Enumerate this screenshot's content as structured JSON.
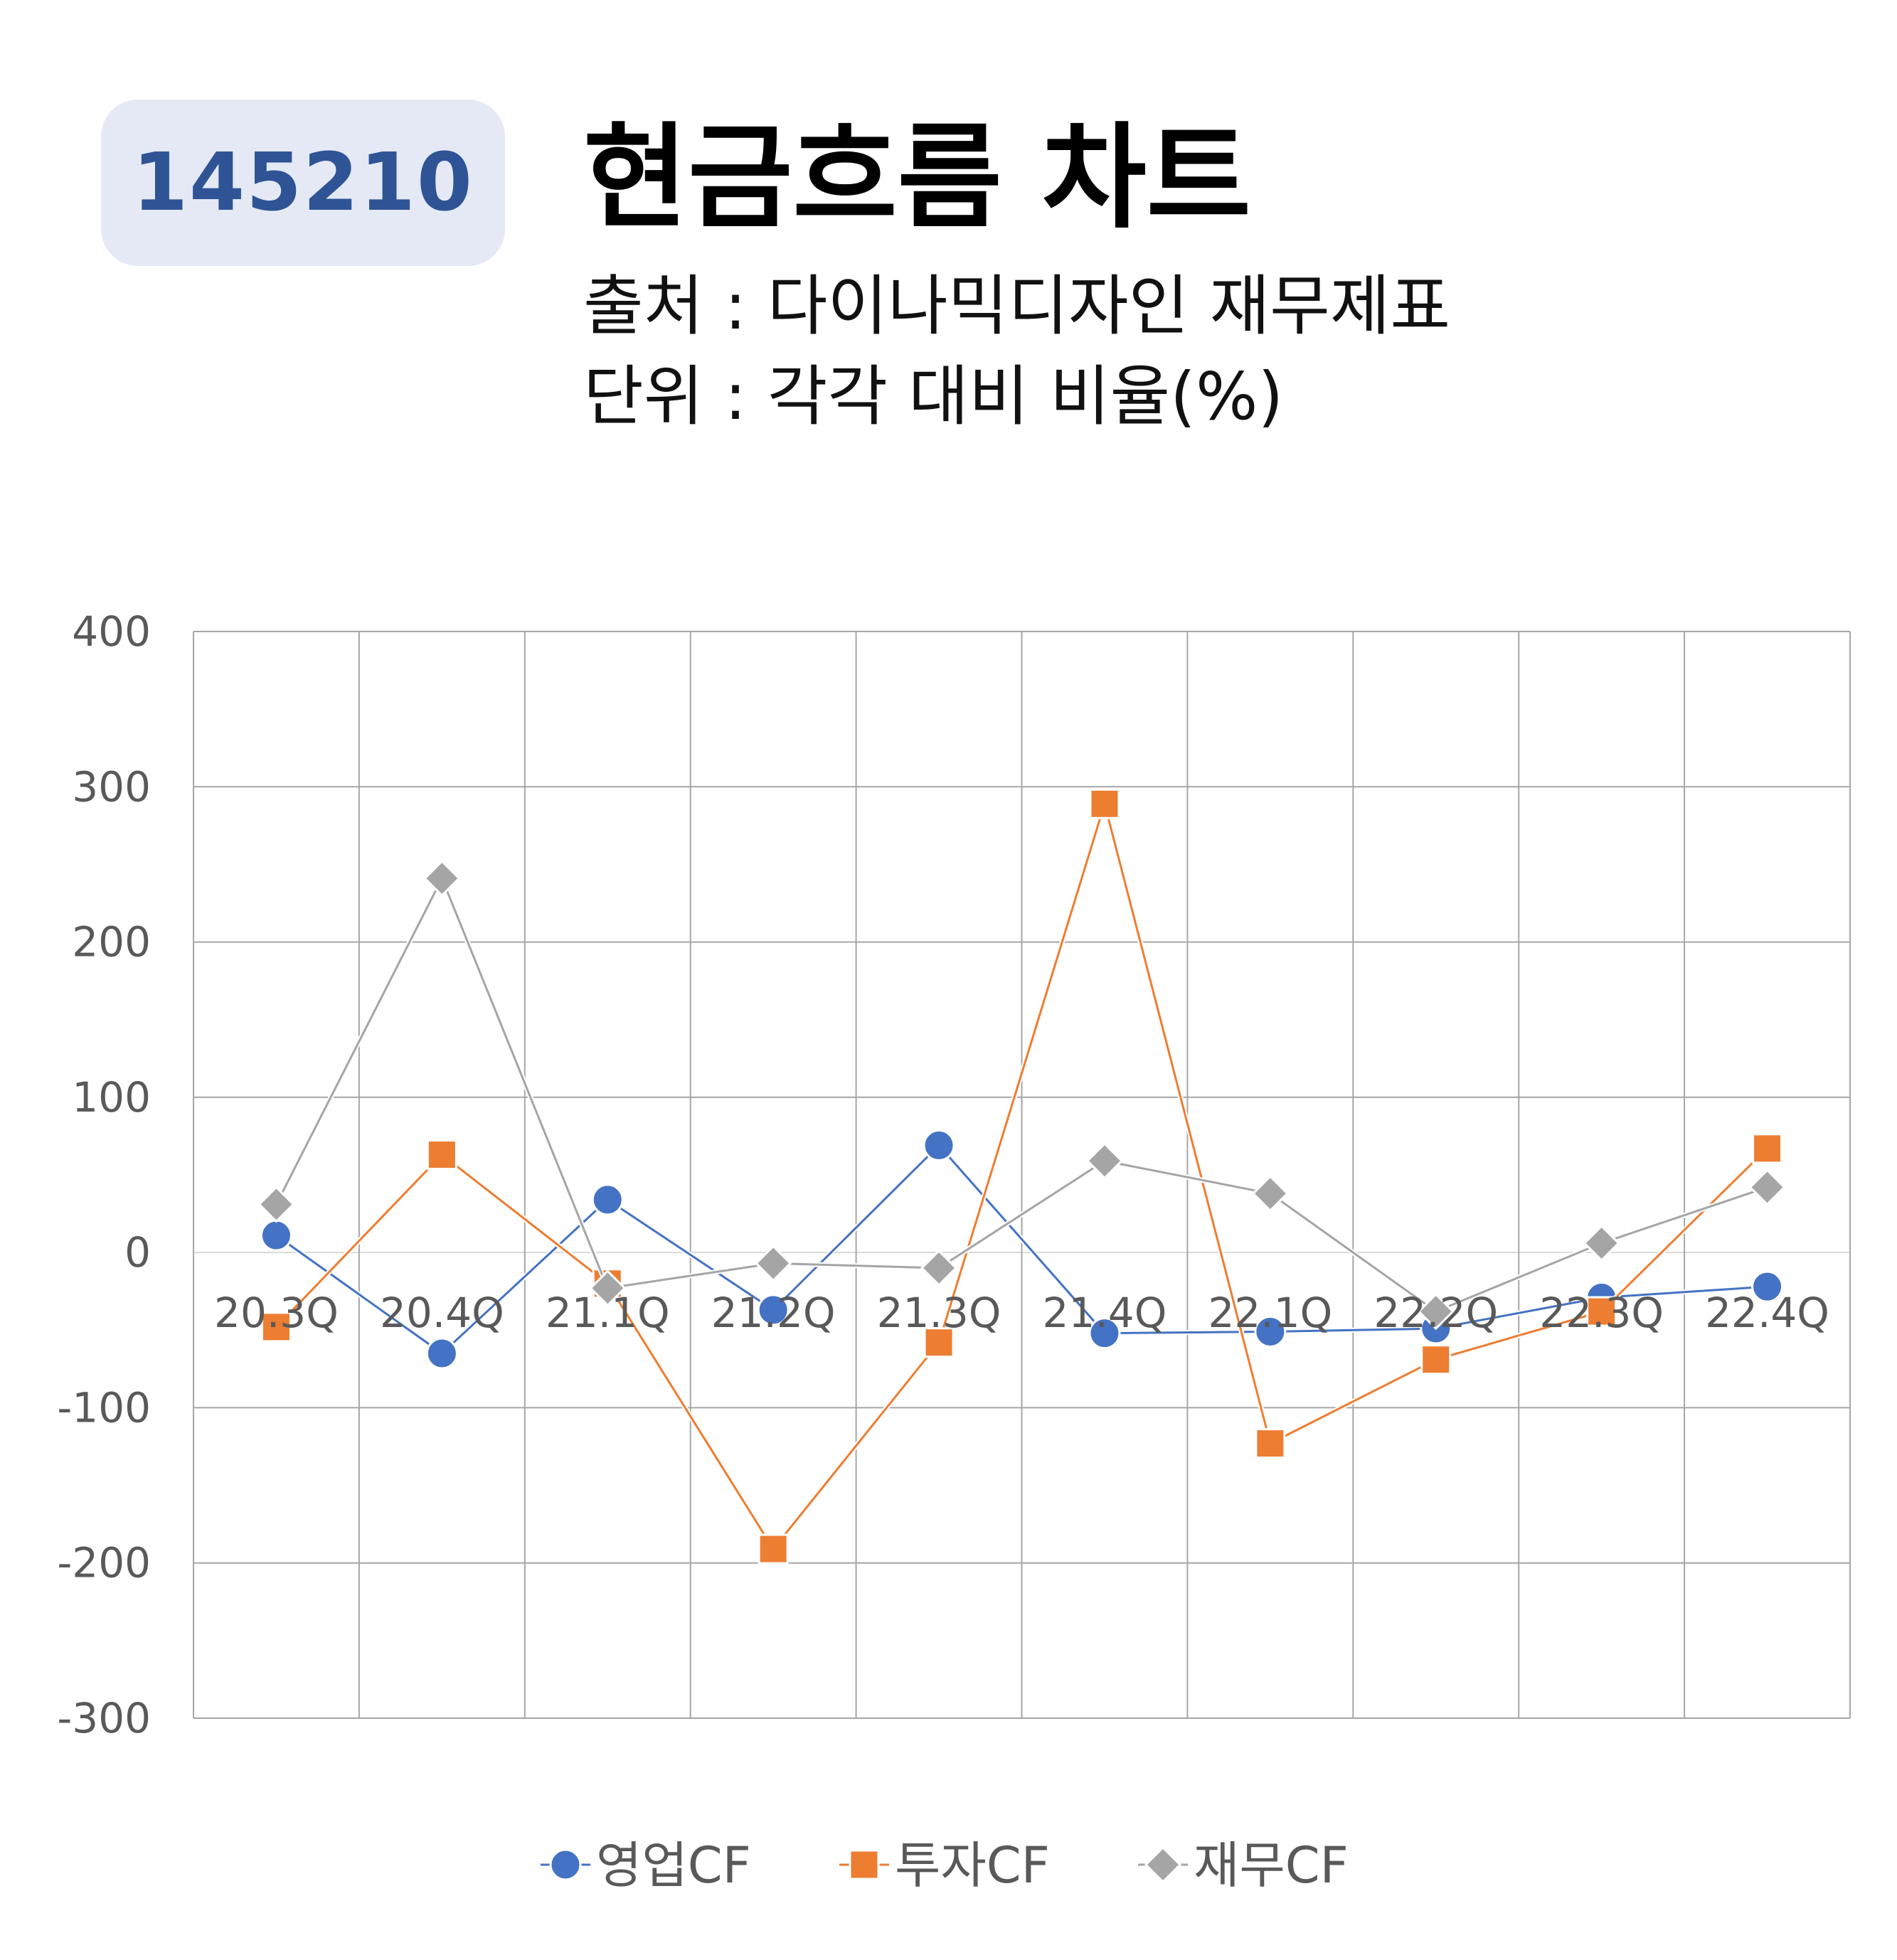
{
  "header": {
    "code": "145210",
    "title": "현금흐름 차트",
    "source_line": "출처 : 다이나믹디자인 재무제표",
    "unit_line": "단위 : 각각 대비 비율(%)"
  },
  "colors": {
    "operating": "#4472c4",
    "investing": "#ed7d31",
    "financing": "#a5a5a5",
    "grid": "#a6a6a6",
    "badge_bg": "#e4e9f5",
    "badge_text": "#2f5496"
  },
  "chart_data": {
    "type": "line",
    "categories": [
      "20.3Q",
      "20.4Q",
      "21.1Q",
      "21.2Q",
      "21.3Q",
      "21.4Q",
      "22.1Q",
      "22.2Q",
      "22.3Q",
      "22.4Q"
    ],
    "yticks": [
      "400",
      "300",
      "200",
      "100",
      "0",
      "-100",
      "-200",
      "-300"
    ],
    "ylim": [
      -300,
      400
    ],
    "grid": true,
    "legend": "bottom",
    "series": [
      {
        "name": "영업CF",
        "marker": "circle",
        "color": "#4472c4",
        "values": [
          11,
          -65,
          34,
          -37,
          69,
          -52,
          -51,
          -49,
          -29,
          -22
        ]
      },
      {
        "name": "투자CF",
        "marker": "square",
        "color": "#ed7d31",
        "values": [
          -48,
          63,
          -20,
          -191,
          -58,
          289,
          -123,
          -69,
          -38,
          67
        ]
      },
      {
        "name": "재무CF",
        "marker": "diamond",
        "color": "#a5a5a5",
        "values": [
          31,
          241,
          -23,
          -7,
          -10,
          59,
          38,
          -38,
          6,
          42
        ]
      }
    ]
  }
}
